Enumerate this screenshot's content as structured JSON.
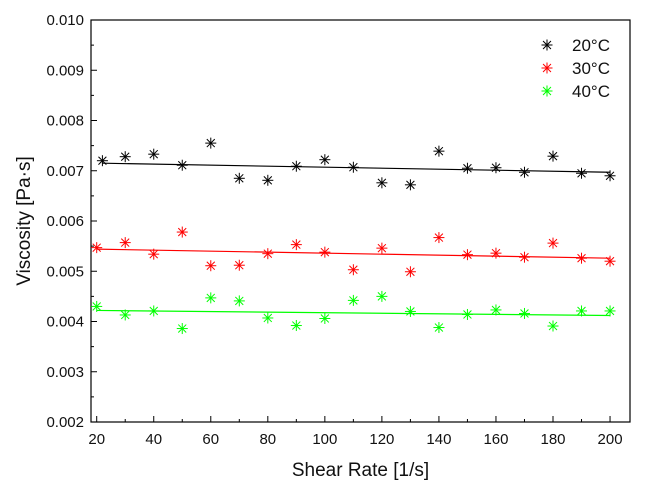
{
  "chart_data": {
    "type": "scatter",
    "title": "",
    "xlabel": "Shear Rate [1/s]",
    "ylabel": "Viscosity [Pa·s]",
    "xlim": [
      18,
      207
    ],
    "ylim": [
      0.002,
      0.01
    ],
    "xticks": [
      20,
      40,
      60,
      80,
      100,
      120,
      140,
      160,
      180,
      200
    ],
    "xtick_labels": [
      "20",
      "40",
      "60",
      "80",
      "100",
      "120",
      "140",
      "160",
      "180",
      "200"
    ],
    "yticks": [
      0.002,
      0.003,
      0.004,
      0.005,
      0.006,
      0.007,
      0.008,
      0.009,
      0.01
    ],
    "ytick_labels": [
      "0.002",
      "0.003",
      "0.004",
      "0.005",
      "0.006",
      "0.007",
      "0.008",
      "0.009",
      "0.010"
    ],
    "grid": false,
    "legend_position": "top-right",
    "marker": "asterisk",
    "series": [
      {
        "name": "20°C",
        "color": "#000000",
        "x": [
          22,
          30,
          40,
          50,
          60,
          70,
          80,
          90,
          100,
          110,
          120,
          130,
          140,
          150,
          160,
          170,
          180,
          190,
          200
        ],
        "y": [
          0.0072,
          0.00728,
          0.00733,
          0.00711,
          0.00755,
          0.00685,
          0.00681,
          0.00709,
          0.00722,
          0.00707,
          0.00676,
          0.00672,
          0.00739,
          0.00705,
          0.00706,
          0.00697,
          0.00729,
          0.00695,
          0.0069
        ],
        "fit": [
          0.00715,
          0.00697
        ]
      },
      {
        "name": "30°C",
        "color": "#ff0000",
        "x": [
          20,
          30,
          40,
          50,
          60,
          70,
          80,
          90,
          100,
          110,
          120,
          130,
          140,
          150,
          160,
          170,
          180,
          190,
          200
        ],
        "y": [
          0.00547,
          0.00557,
          0.00534,
          0.00578,
          0.00511,
          0.00512,
          0.00535,
          0.00553,
          0.00538,
          0.00503,
          0.00546,
          0.00499,
          0.00567,
          0.00533,
          0.00536,
          0.00528,
          0.00556,
          0.00526,
          0.0052
        ],
        "fit": [
          0.00544,
          0.00526
        ]
      },
      {
        "name": "40°C",
        "color": "#00ff00",
        "x": [
          20,
          30,
          40,
          50,
          60,
          70,
          80,
          90,
          100,
          110,
          120,
          130,
          140,
          150,
          160,
          170,
          180,
          190,
          200
        ],
        "y": [
          0.0043,
          0.00413,
          0.00421,
          0.00386,
          0.00447,
          0.00441,
          0.00407,
          0.00392,
          0.00406,
          0.00442,
          0.0045,
          0.0042,
          0.00388,
          0.00414,
          0.00423,
          0.00416,
          0.00391,
          0.00421,
          0.00421
        ],
        "fit": [
          0.00422,
          0.00412
        ]
      }
    ]
  }
}
